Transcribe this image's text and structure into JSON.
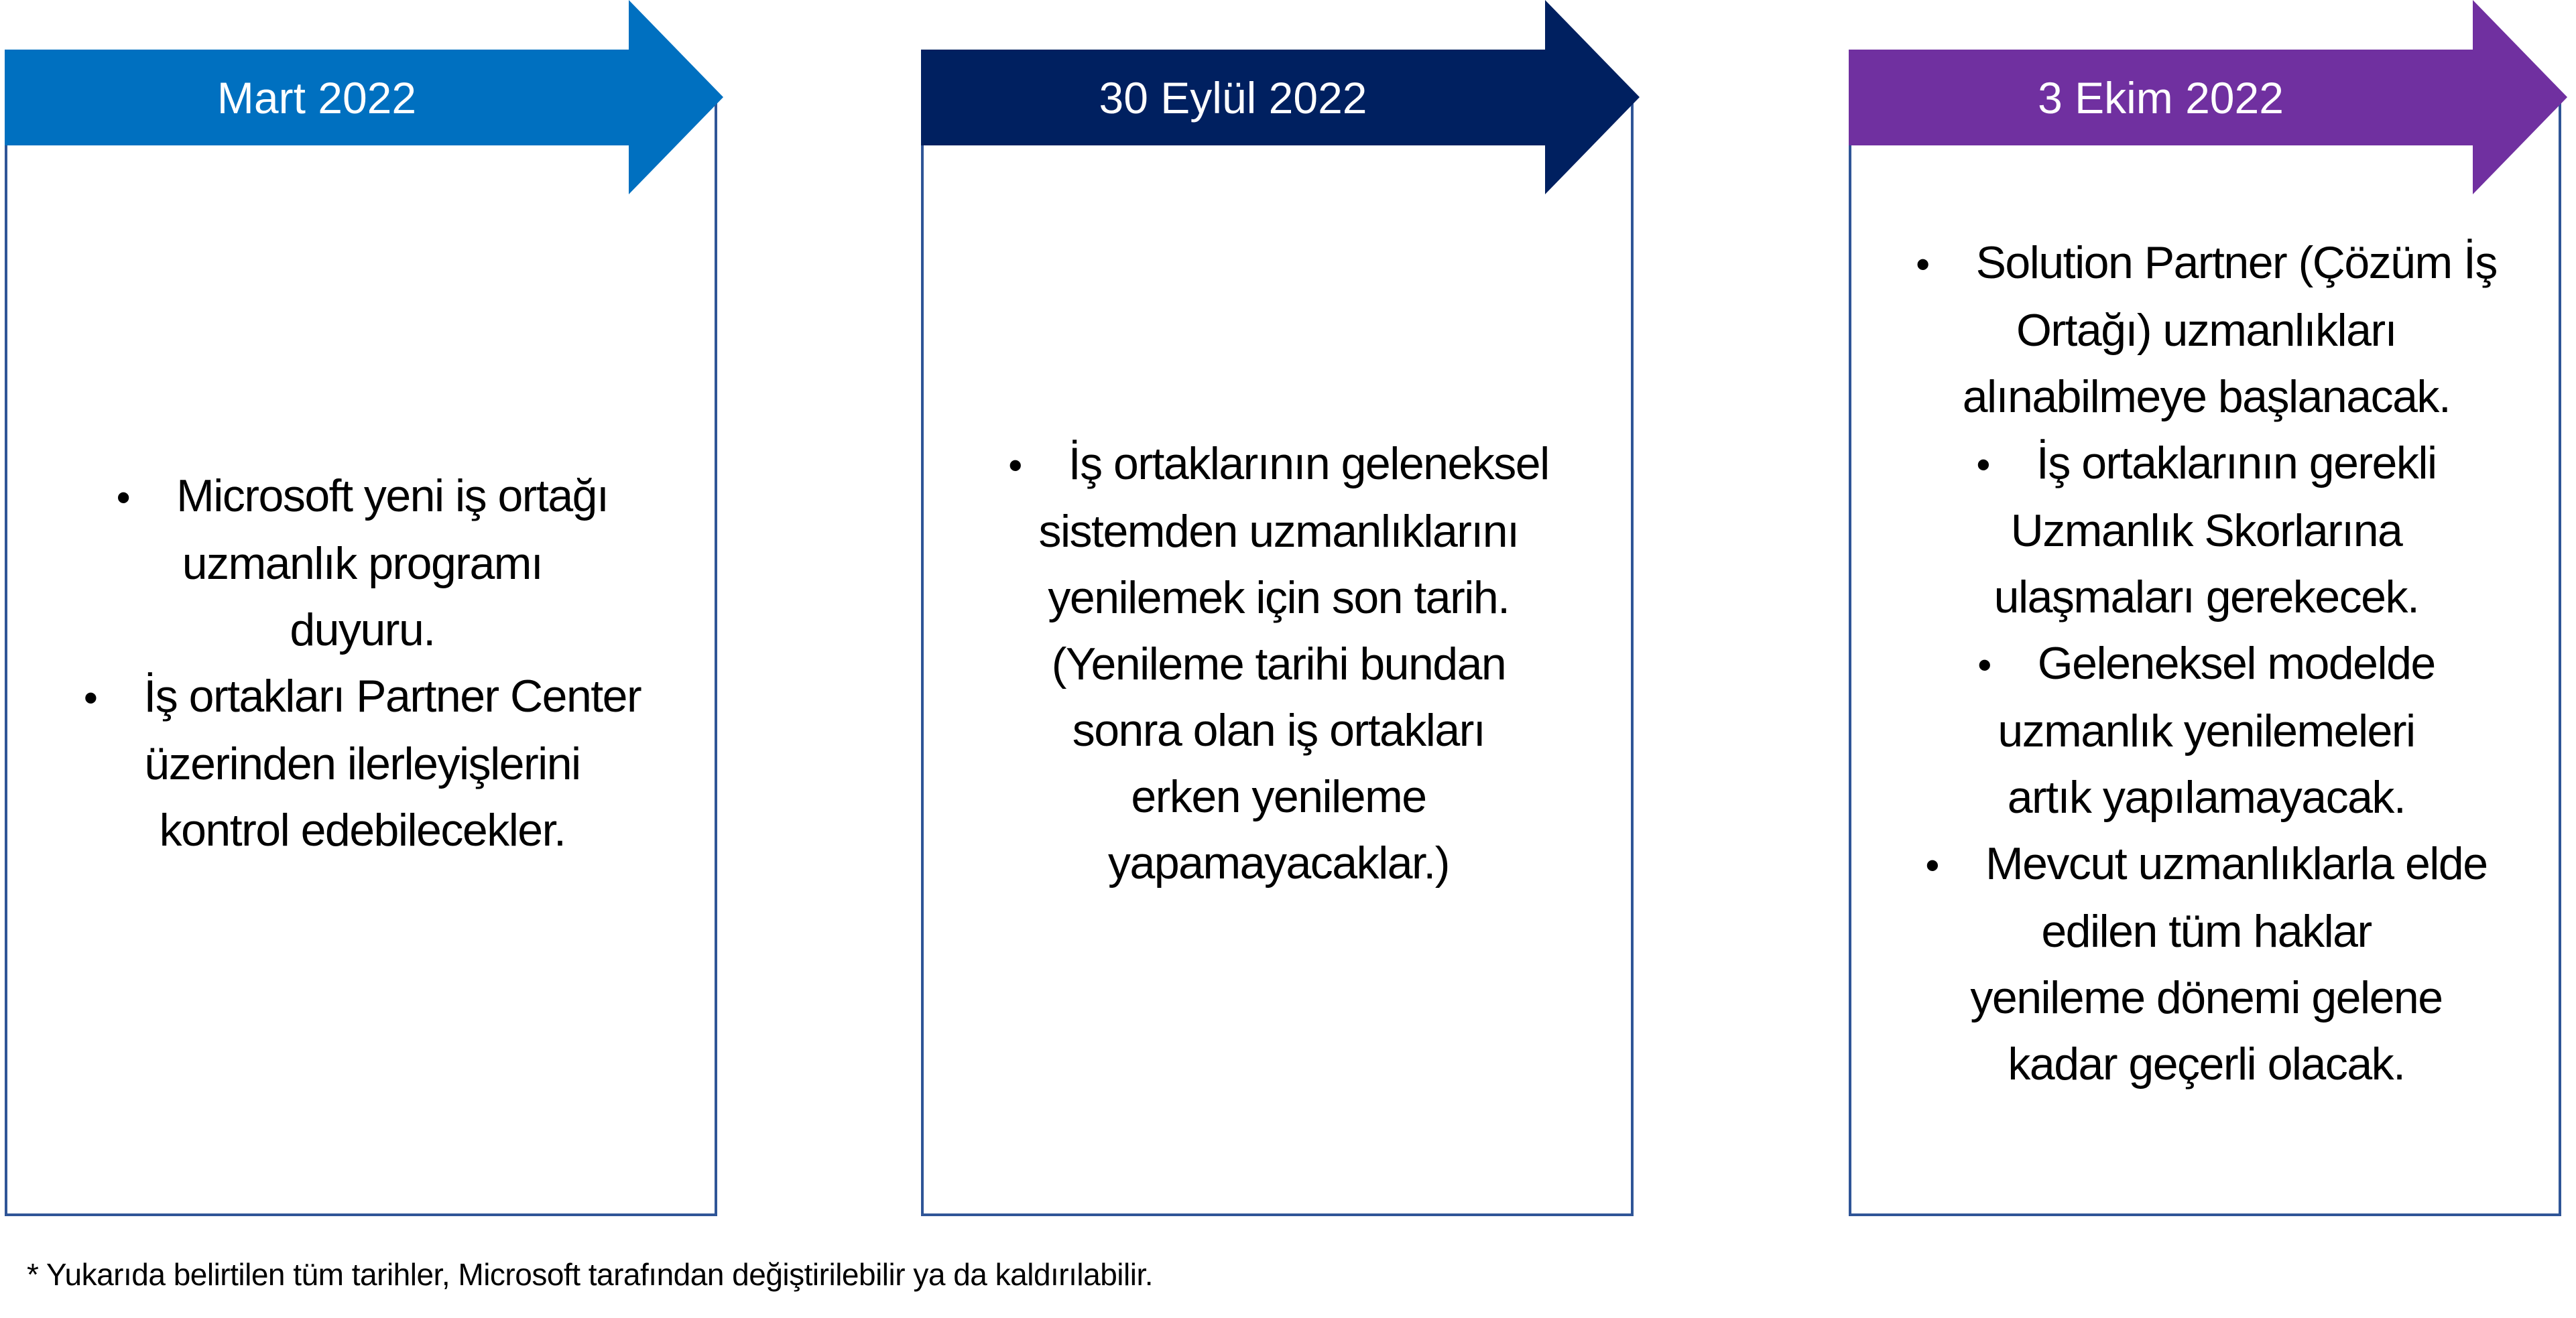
{
  "colors": {
    "stage1": "#0070C0",
    "stage2": "#002060",
    "stage3": "#7030A0",
    "border": "#2F5597"
  },
  "stages": [
    {
      "label": "Mart 2022",
      "items": [
        "Microsoft yeni iş ortağı\nuzmanlık programı\nduyuru.",
        "İş ortakları Partner Center\nüzerinden ilerleyişlerini\nkontrol edebilecekler."
      ]
    },
    {
      "label": "30 Eylül 2022",
      "items": [
        "İş ortaklarının geleneksel\nsistemden uzmanlıklarını\nyenilemek için son tarih.\n(Yenileme tarihi bundan\nsonra olan iş ortakları\nerken yenileme\nyapamayacaklar.)"
      ]
    },
    {
      "label": "3 Ekim 2022",
      "items": [
        "Solution Partner (Çözüm İş\nOrtağı) uzmanlıkları\nalınabilmeye başlanacak.",
        "İş ortaklarının gerekli\nUzmanlık Skorlarına\nulaşmaları gerekecek.",
        "Geleneksel modelde\nuzmanlık yenilemeleri\nartık yapılamayacak.",
        "Mevcut uzmanlıklarla elde\nedilen tüm haklar\nyenileme dönemi gelene\nkadar geçerli olacak."
      ]
    }
  ],
  "bullet": "•",
  "footnote": "* Yukarıda belirtilen tüm tarihler, Microsoft tarafından değiştirilebilir ya da kaldırılabilir."
}
